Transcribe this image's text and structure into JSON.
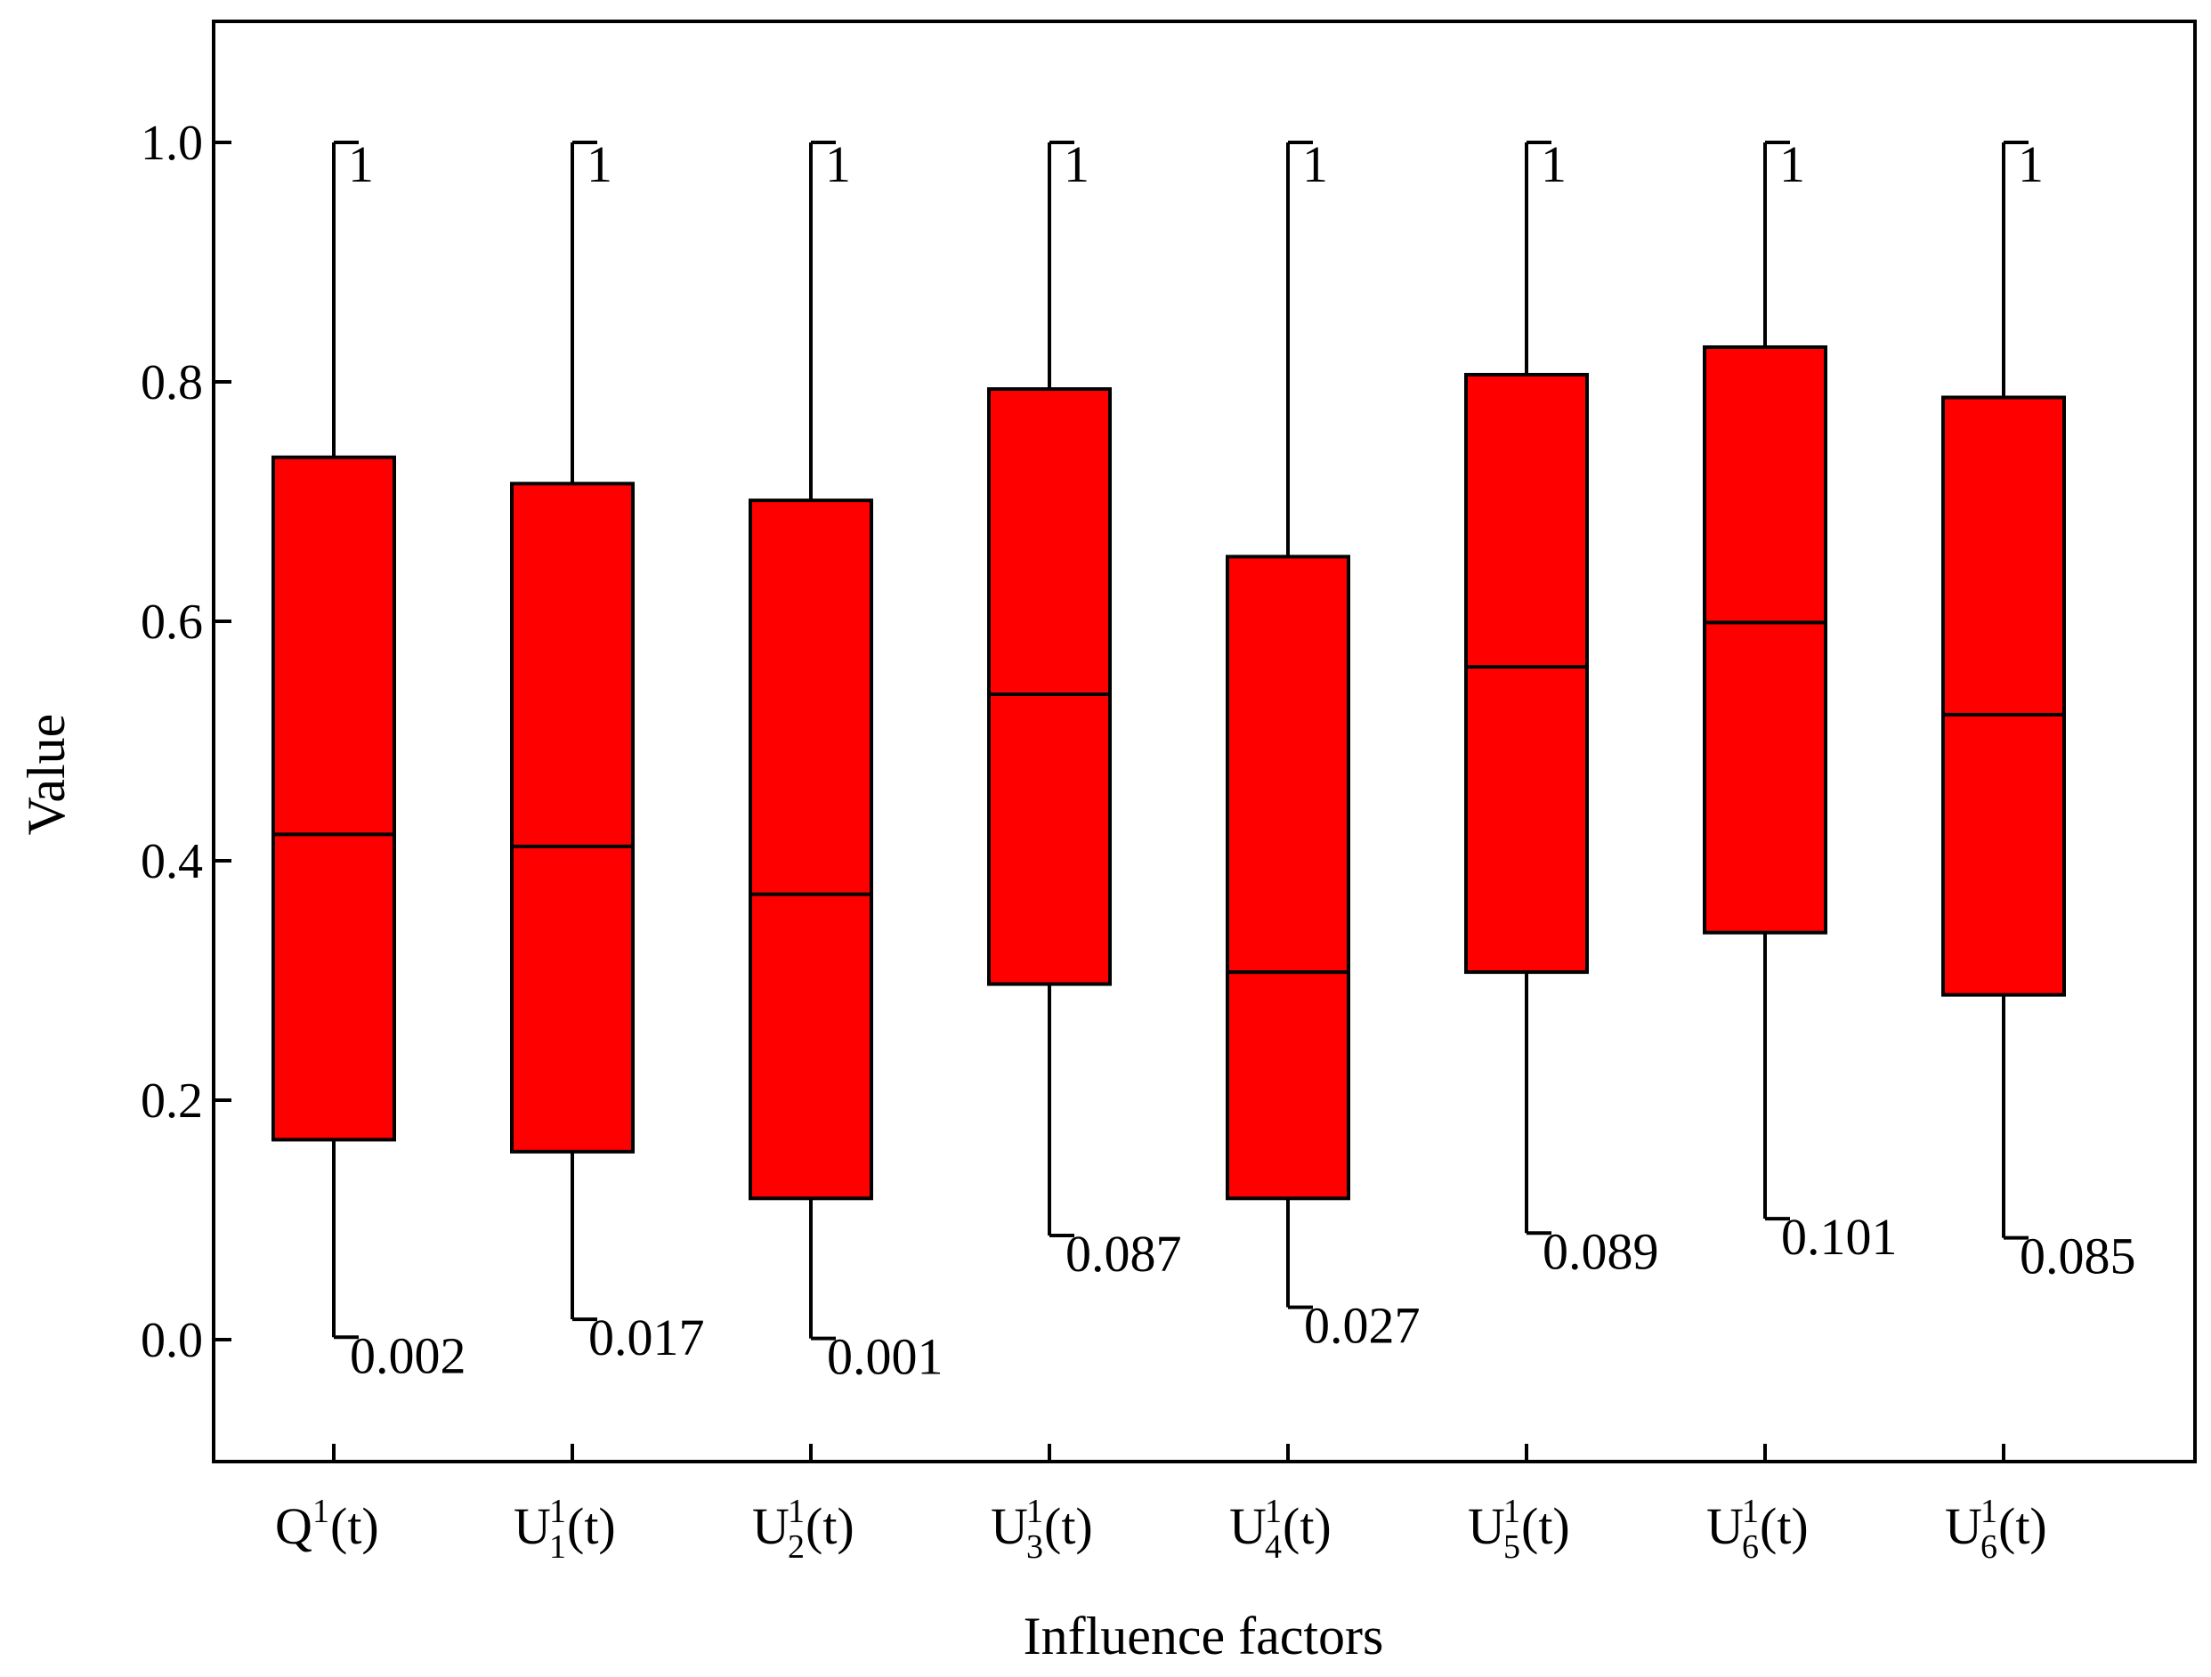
{
  "chart_data": {
    "type": "box",
    "xlabel": "Influence factors",
    "ylabel": "Value",
    "ylim": [
      -0.1,
      1.1
    ],
    "yticks": [
      "0.0",
      "0.2",
      "0.4",
      "0.6",
      "0.8",
      "1.0"
    ],
    "grid": false,
    "box_color": "#ff0000",
    "categories": [
      {
        "base": "Q",
        "sup": "1",
        "sub": "",
        "arg": "(t)"
      },
      {
        "base": "U",
        "sup": "1",
        "sub": "1",
        "arg": "(t)"
      },
      {
        "base": "U",
        "sup": "1",
        "sub": "2",
        "arg": "(t)"
      },
      {
        "base": "U",
        "sup": "1",
        "sub": "3",
        "arg": "(t)"
      },
      {
        "base": "U",
        "sup": "1",
        "sub": "4",
        "arg": "(t)"
      },
      {
        "base": "U",
        "sup": "1",
        "sub": "5",
        "arg": "(t)"
      },
      {
        "base": "U",
        "sup": "1",
        "sub": "6",
        "arg": "(t)"
      },
      {
        "base": "U",
        "sup": "1",
        "sub": "6",
        "arg": "(t)"
      }
    ],
    "boxes": [
      {
        "min": 0.002,
        "q1": 0.167,
        "median": 0.422,
        "q3": 0.737,
        "max": 1.0,
        "min_label": "0.002",
        "max_label": "1"
      },
      {
        "min": 0.017,
        "q1": 0.157,
        "median": 0.412,
        "q3": 0.715,
        "max": 1.0,
        "min_label": "0.017",
        "max_label": "1"
      },
      {
        "min": 0.001,
        "q1": 0.118,
        "median": 0.372,
        "q3": 0.701,
        "max": 1.0,
        "min_label": "0.001",
        "max_label": "1"
      },
      {
        "min": 0.087,
        "q1": 0.297,
        "median": 0.539,
        "q3": 0.794,
        "max": 1.0,
        "min_label": "0.087",
        "max_label": "1"
      },
      {
        "min": 0.027,
        "q1": 0.118,
        "median": 0.307,
        "q3": 0.654,
        "max": 1.0,
        "min_label": "0.027",
        "max_label": "1"
      },
      {
        "min": 0.089,
        "q1": 0.307,
        "median": 0.562,
        "q3": 0.806,
        "max": 1.0,
        "min_label": "0.089",
        "max_label": "1"
      },
      {
        "min": 0.101,
        "q1": 0.34,
        "median": 0.599,
        "q3": 0.829,
        "max": 1.0,
        "min_label": "0.101",
        "max_label": "1"
      },
      {
        "min": 0.085,
        "q1": 0.288,
        "median": 0.522,
        "q3": 0.787,
        "max": 1.0,
        "min_label": "0.085",
        "max_label": "1"
      }
    ]
  }
}
